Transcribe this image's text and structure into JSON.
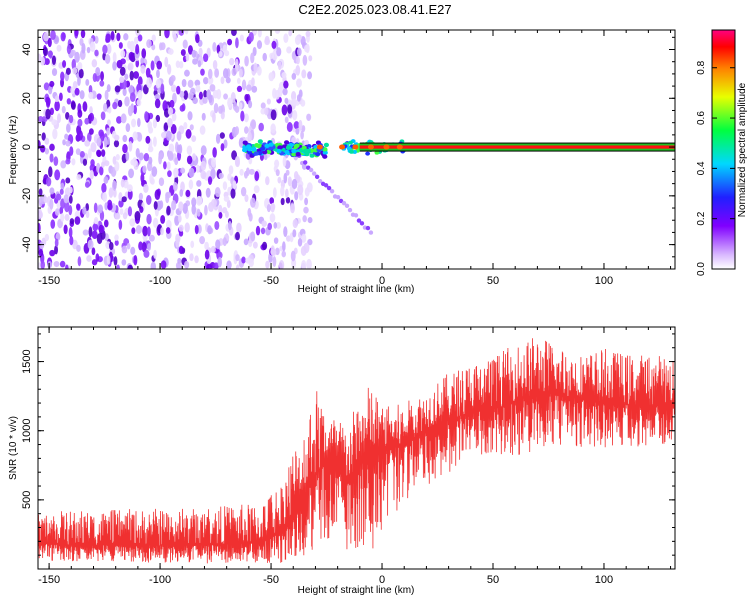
{
  "title": "C2E2.2025.023.08.41.E27",
  "colors": {
    "snr_line": "#f03030",
    "background": "#ffffff",
    "axis": "#000000"
  },
  "chart_data": [
    {
      "type": "heatmap",
      "xlabel": "Height of straight line (km)",
      "ylabel": "Frequency (Hz)",
      "xlim": [
        -155,
        132
      ],
      "ylim": [
        -50,
        48
      ],
      "x_ticks": [
        -150,
        -100,
        -50,
        0,
        50,
        100
      ],
      "y_ticks": [
        -40,
        -20,
        0,
        20,
        40
      ],
      "colorbar": {
        "label": "Normalized spectral amplitude",
        "range": [
          0.0,
          0.95
        ],
        "ticks": [
          0.0,
          0.2,
          0.4,
          0.6,
          0.8
        ],
        "colormap": "rainbow (white-violet-blue-cyan-green-yellow-red-magenta)"
      },
      "features": [
        {
          "name": "noise field",
          "x_range": [
            -155,
            -40
          ],
          "y_range": [
            -50,
            48
          ],
          "amplitude": 0.1
        },
        {
          "name": "carrier line",
          "x_range": [
            -10,
            132
          ],
          "frequency_hz": 0,
          "amplitude": 0.9
        },
        {
          "name": "onset cluster",
          "x_range": [
            -62,
            -25
          ],
          "frequency_hz": [
            -5,
            4
          ],
          "amplitude": 0.35
        },
        {
          "name": "descending trail",
          "x_start": -40,
          "x_end": -5,
          "frequency_start_hz": -2,
          "frequency_end_hz": -35,
          "amplitude": 0.12
        }
      ]
    },
    {
      "type": "line",
      "xlabel": "Height of straight line (km)",
      "ylabel": "SNR (10 * v/v)",
      "xlim": [
        -155,
        132
      ],
      "ylim": [
        0,
        1750
      ],
      "x_ticks": [
        -150,
        -100,
        -50,
        0,
        50,
        100
      ],
      "y_ticks": [
        500,
        1000,
        1500
      ],
      "series_color": "#f03030",
      "envelope": {
        "x": [
          -155,
          -120,
          -80,
          -55,
          -45,
          -40,
          -35,
          -30,
          -25,
          -20,
          -15,
          -10,
          -5,
          0,
          10,
          20,
          30,
          40,
          50,
          60,
          70,
          80,
          90,
          100,
          110,
          120,
          132
        ],
        "low": [
          60,
          50,
          40,
          40,
          40,
          80,
          100,
          130,
          160,
          150,
          140,
          150,
          120,
          250,
          480,
          600,
          680,
          800,
          830,
          820,
          850,
          860,
          870,
          880,
          880,
          880,
          900
        ],
        "mean": [
          180,
          170,
          170,
          190,
          270,
          380,
          530,
          680,
          780,
          700,
          650,
          750,
          800,
          880,
          900,
          1020,
          1080,
          1130,
          1150,
          1220,
          1270,
          1260,
          1230,
          1200,
          1190,
          1180,
          1200
        ],
        "high": [
          420,
          430,
          450,
          480,
          650,
          900,
          1050,
          1350,
          1150,
          1100,
          1050,
          1280,
          1350,
          1180,
          1200,
          1300,
          1420,
          1500,
          1550,
          1630,
          1700,
          1620,
          1560,
          1600,
          1560,
          1560,
          1550
        ]
      }
    }
  ]
}
